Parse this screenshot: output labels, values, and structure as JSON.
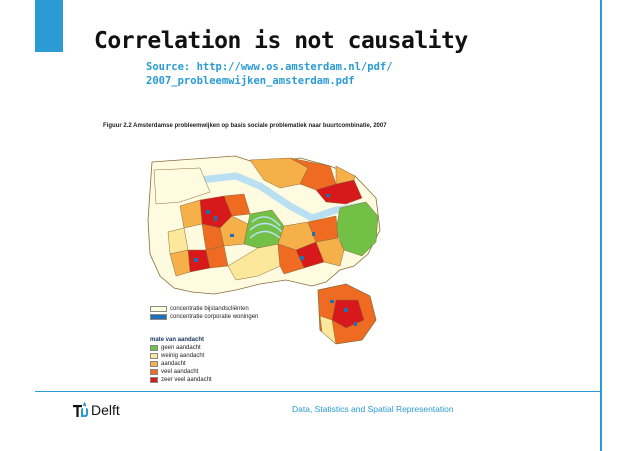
{
  "slide": {
    "title": "Correlation is not causality",
    "source_line1": "Source: http://www.os.amsterdam.nl/pdf/",
    "source_line2": "2007_probleemwijken_amsterdam.pdf",
    "figure_caption": "Figuur 2.2  Amsterdamse probleemwijken op basis sociale problematiek naar buurtcombinatie, 2007"
  },
  "legend": {
    "overlay_items": [
      {
        "label": "concentratie bijstandscliënten",
        "color": "#fffde0"
      },
      {
        "label": "concentratie corporatie woningen",
        "color": "#1f6fb5"
      }
    ],
    "scale_title": "mate van aandacht",
    "scale_items": [
      {
        "label": "geen aandacht",
        "color": "#72c045"
      },
      {
        "label": "weinig aandacht",
        "color": "#fbe89b"
      },
      {
        "label": "aandacht",
        "color": "#f6b04a"
      },
      {
        "label": "veel aandacht",
        "color": "#ee6b21"
      },
      {
        "label": "zeer veel aandacht",
        "color": "#d7191c"
      }
    ]
  },
  "footer": {
    "logo_text": "Delft",
    "text": "Data, Statistics and Spatial Representation"
  },
  "colors": {
    "accent": "#2a9bd4",
    "water": "#b9dff2",
    "boundary": "#8a6d3b"
  }
}
